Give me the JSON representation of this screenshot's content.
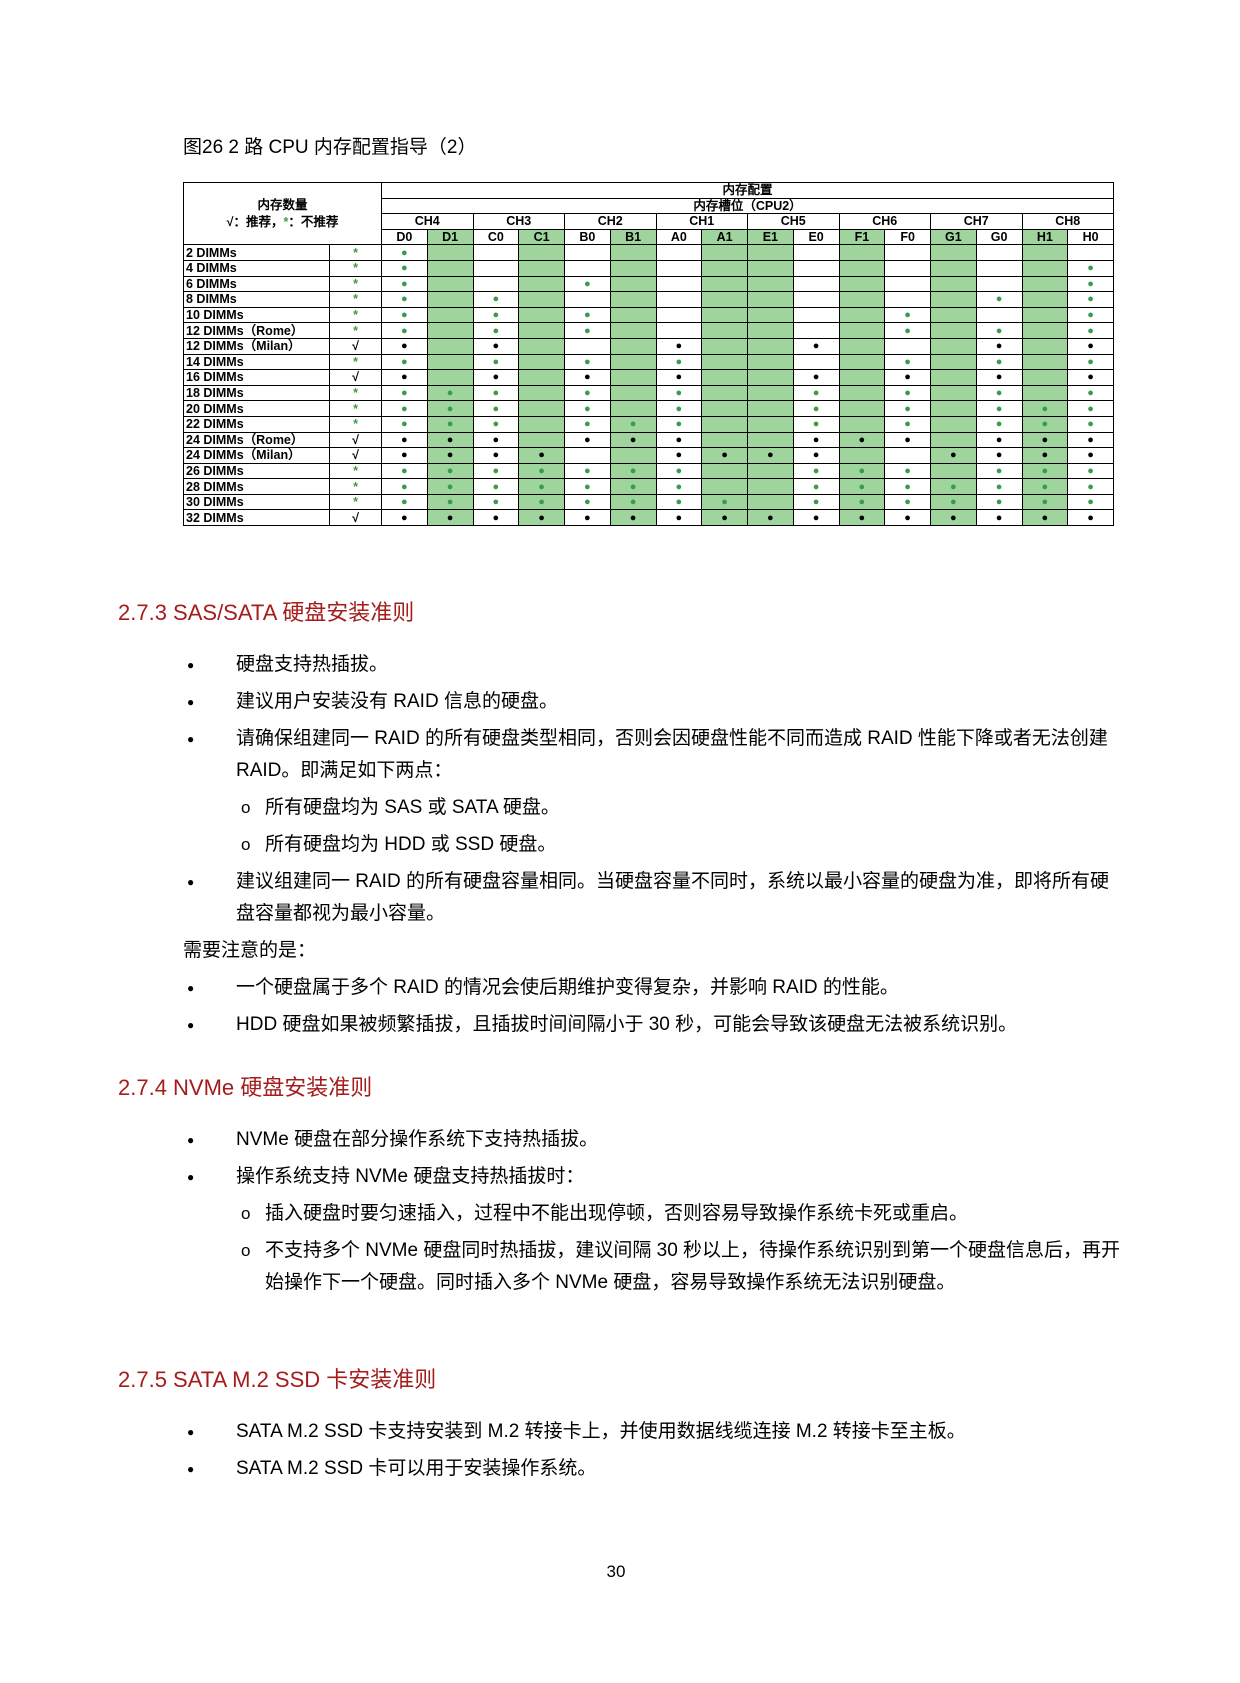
{
  "figure": {
    "caption": "图26 2 路 CPU 内存配置指导（2）",
    "table": {
      "count_title": "内存数量",
      "legend": {
        "rec_symbol": "√",
        "rec_text": "：推荐，",
        "norec_symbol": "*",
        "norec_text": "：不推荐"
      },
      "group_title": "内存配置",
      "slot_title": "内存槽位（CPU2）",
      "channels": [
        "CH4",
        "CH3",
        "CH2",
        "CH1",
        "CH5",
        "CH6",
        "CH7",
        "CH8"
      ],
      "slots": [
        "D0",
        "D1",
        "C0",
        "C1",
        "B0",
        "B1",
        "A0",
        "A1",
        "E1",
        "E0",
        "F1",
        "F0",
        "G1",
        "G0",
        "H1",
        "H0"
      ],
      "shaded_slots": [
        1,
        3,
        5,
        7,
        8,
        10,
        12,
        14
      ],
      "shade_color": "#9fd49d",
      "rows": [
        {
          "count": "2 DIMMs",
          "rec": "*",
          "color": "#3c9a48",
          "dots": [
            "●",
            null,
            null,
            null,
            null,
            null,
            null,
            null,
            null,
            null,
            null,
            null,
            null,
            null,
            null,
            null
          ]
        },
        {
          "count": "4 DIMMs",
          "rec": "*",
          "color": "#3c9a48",
          "dots": [
            "●",
            null,
            null,
            null,
            null,
            null,
            null,
            null,
            null,
            null,
            null,
            null,
            null,
            null,
            null,
            "●"
          ]
        },
        {
          "count": "6 DIMMs",
          "rec": "*",
          "color": "#3c9a48",
          "dots": [
            "●",
            null,
            null,
            null,
            "●",
            null,
            null,
            null,
            null,
            null,
            null,
            null,
            null,
            null,
            null,
            "●"
          ]
        },
        {
          "count": "8 DIMMs",
          "rec": "*",
          "color": "#3c9a48",
          "dots": [
            "●",
            null,
            "●",
            null,
            null,
            null,
            null,
            null,
            null,
            null,
            null,
            null,
            null,
            "●",
            null,
            "●"
          ]
        },
        {
          "count": "10 DIMMs",
          "rec": "*",
          "color": "#3c9a48",
          "dots": [
            "●",
            null,
            "●",
            null,
            "●",
            null,
            null,
            null,
            null,
            null,
            null,
            "●",
            null,
            null,
            null,
            "●"
          ]
        },
        {
          "count": "12 DIMMs（Rome）",
          "rec": "*",
          "color": "#3c9a48",
          "dots": [
            "●",
            null,
            "●",
            null,
            "●",
            null,
            null,
            null,
            null,
            null,
            null,
            "●",
            null,
            "●",
            null,
            "●"
          ]
        },
        {
          "count": "12 DIMMs（Milan）",
          "rec": "√",
          "color": "#000000",
          "dots": [
            "●",
            null,
            "●",
            null,
            null,
            null,
            "●",
            null,
            null,
            "●",
            null,
            null,
            null,
            "●",
            null,
            "●"
          ]
        },
        {
          "count": "14 DIMMs",
          "rec": "*",
          "color": "#3c9a48",
          "dots": [
            "●",
            null,
            "●",
            null,
            "●",
            null,
            "●",
            null,
            null,
            null,
            null,
            "●",
            null,
            "●",
            null,
            "●"
          ]
        },
        {
          "count": "16 DIMMs",
          "rec": "√",
          "color": "#000000",
          "dots": [
            "●",
            null,
            "●",
            null,
            "●",
            null,
            "●",
            null,
            null,
            "●",
            null,
            "●",
            null,
            "●",
            null,
            "●"
          ]
        },
        {
          "count": "18 DIMMs",
          "rec": "*",
          "color": "#3c9a48",
          "dots": [
            "●",
            "●",
            "●",
            null,
            "●",
            null,
            "●",
            null,
            null,
            "●",
            null,
            "●",
            null,
            "●",
            null,
            "●"
          ]
        },
        {
          "count": "20 DIMMs",
          "rec": "*",
          "color": "#3c9a48",
          "dots": [
            "●",
            "●",
            "●",
            null,
            "●",
            null,
            "●",
            null,
            null,
            "●",
            null,
            "●",
            null,
            "●",
            "●",
            "●"
          ]
        },
        {
          "count": "22 DIMMs",
          "rec": "*",
          "color": "#3c9a48",
          "dots": [
            "●",
            "●",
            "●",
            null,
            "●",
            "●",
            "●",
            null,
            null,
            "●",
            null,
            "●",
            null,
            "●",
            "●",
            "●"
          ]
        },
        {
          "count": "24 DIMMs（Rome）",
          "rec": "√",
          "color": "#000000",
          "dots": [
            "●",
            "●",
            "●",
            null,
            "●",
            "●",
            "●",
            null,
            null,
            "●",
            "●",
            "●",
            null,
            "●",
            "●",
            "●"
          ]
        },
        {
          "count": "24 DIMMs（Milan）",
          "rec": "√",
          "color": "#000000",
          "dots": [
            "●",
            "●",
            "●",
            "●",
            null,
            null,
            "●",
            "●",
            "●",
            "●",
            null,
            null,
            "●",
            "●",
            "●",
            "●"
          ]
        },
        {
          "count": "26 DIMMs",
          "rec": "*",
          "color": "#3c9a48",
          "dots": [
            "●",
            "●",
            "●",
            "●",
            "●",
            "●",
            "●",
            null,
            null,
            "●",
            "●",
            "●",
            null,
            "●",
            "●",
            "●"
          ]
        },
        {
          "count": "28 DIMMs",
          "rec": "*",
          "color": "#3c9a48",
          "dots": [
            "●",
            "●",
            "●",
            "●",
            "●",
            "●",
            "●",
            null,
            null,
            "●",
            "●",
            "●",
            "●",
            "●",
            "●",
            "●"
          ]
        },
        {
          "count": "30 DIMMs",
          "rec": "*",
          "color": "#3c9a48",
          "dots": [
            "●",
            "●",
            "●",
            "●",
            "●",
            "●",
            "●",
            "●",
            null,
            "●",
            "●",
            "●",
            "●",
            "●",
            "●",
            "●"
          ]
        },
        {
          "count": "32 DIMMs",
          "rec": "√",
          "color": "#000000",
          "dots": [
            "●",
            "●",
            "●",
            "●",
            "●",
            "●",
            "●",
            "●",
            "●",
            "●",
            "●",
            "●",
            "●",
            "●",
            "●",
            "●"
          ]
        }
      ]
    }
  },
  "sections": [
    {
      "heading": "2.7.3  SAS/SATA 硬盘安装准则",
      "blocks": [
        {
          "bullet": "硬盘支持热插拔。"
        },
        {
          "bullet": "建议用户安装没有 RAID 信息的硬盘。"
        },
        {
          "bullet": "请确保组建同一 RAID 的所有硬盘类型相同，否则会因硬盘性能不同而造成 RAID 性能下降或者无法创建 RAID。即满足如下两点：",
          "sub": [
            "所有硬盘均为 SAS 或 SATA 硬盘。",
            "所有硬盘均为 HDD 或 SSD 硬盘。"
          ]
        },
        {
          "bullet": "建议组建同一 RAID 的所有硬盘容量相同。当硬盘容量不同时，系统以最小容量的硬盘为准，即将所有硬盘容量都视为最小容量。"
        },
        {
          "paragraph": "需要注意的是："
        },
        {
          "bullet": "一个硬盘属于多个 RAID 的情况会使后期维护变得复杂，并影响 RAID 的性能。"
        },
        {
          "bullet": "HDD 硬盘如果被频繁插拔，且插拔时间间隔小于 30 秒，可能会导致该硬盘无法被系统识别。"
        }
      ]
    },
    {
      "heading": "2.7.4  NVMe 硬盘安装准则",
      "blocks": [
        {
          "bullet": "NVMe 硬盘在部分操作系统下支持热插拔。"
        },
        {
          "bullet": "操作系统支持 NVMe 硬盘支持热插拔时：",
          "sub": [
            "插入硬盘时要匀速插入，过程中不能出现停顿，否则容易导致操作系统卡死或重启。",
            "不支持多个 NVMe 硬盘同时热插拔，建议间隔 30 秒以上，待操作系统识别到第一个硬盘信息后，再开始操作下一个硬盘。同时插入多个 NVMe 硬盘，容易导致操作系统无法识别硬盘。"
          ]
        }
      ]
    },
    {
      "heading": "2.7.5  SATA M.2 SSD 卡安装准则",
      "blocks": [
        {
          "bullet": "SATA M.2 SSD 卡支持安装到 M.2 转接卡上，并使用数据线缆连接 M.2 转接卡至主板。"
        },
        {
          "bullet": "SATA M.2 SSD 卡可以用于安装操作系统。"
        }
      ]
    }
  ],
  "page_number": "30"
}
